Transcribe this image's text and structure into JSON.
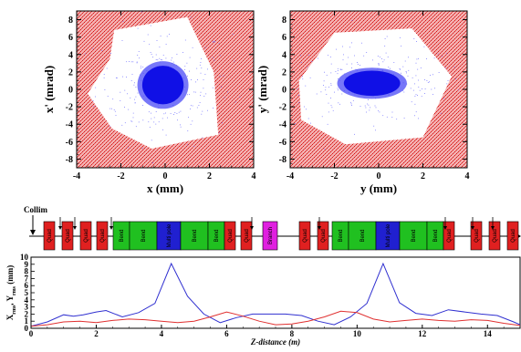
{
  "chart_data": [
    {
      "type": "scatter",
      "xlabel": "x (mm)",
      "ylabel": "x' (mrad)",
      "xlim": [
        -4,
        4
      ],
      "ylim": [
        -9,
        9
      ],
      "xticks": [
        -4,
        -2,
        0,
        2,
        4
      ],
      "yticks": [
        -8,
        -6,
        -4,
        -2,
        0,
        2,
        4,
        6,
        8
      ],
      "series": [
        {
          "color": "#e03030",
          "description_points": "halo fill outside aperture"
        },
        {
          "color": "#1010e0",
          "description_points": "core beam near origin"
        }
      ],
      "aperture_polygon": [
        [
          -2.3,
          6.8
        ],
        [
          1.0,
          8.3
        ],
        [
          2.2,
          2.0
        ],
        [
          2.4,
          -5.2
        ],
        [
          -0.6,
          -6.8
        ],
        [
          -2.4,
          -4.5
        ],
        [
          -3.5,
          -0.5
        ],
        [
          -2.5,
          3.5
        ]
      ],
      "core_ellipse": {
        "cx": -0.1,
        "cy": 0.5,
        "rx": 1.1,
        "ry": 2.6
      }
    },
    {
      "type": "scatter",
      "xlabel": "y (mm)",
      "ylabel": "y' (mrad)",
      "xlim": [
        -4,
        4
      ],
      "ylim": [
        -9,
        9
      ],
      "xticks": [
        -4,
        -2,
        0,
        2,
        4
      ],
      "yticks": [
        -8,
        -6,
        -4,
        -2,
        0,
        2,
        4,
        6,
        8
      ],
      "series": [
        {
          "color": "#e03030"
        },
        {
          "color": "#1010e0"
        }
      ],
      "aperture_polygon": [
        [
          -2.0,
          6.5
        ],
        [
          1.5,
          7.0
        ],
        [
          3.3,
          1.5
        ],
        [
          2.0,
          -5.5
        ],
        [
          -1.5,
          -6.3
        ],
        [
          -3.5,
          -3.5
        ],
        [
          -3.6,
          1.0
        ]
      ],
      "core_ellipse": {
        "cx": -0.3,
        "cy": 0.7,
        "rx": 1.5,
        "ry": 1.7
      }
    },
    {
      "type": "line",
      "xlabel": "Z-distance (m)",
      "ylabel": "Xₒₘₛ, Yₒₘₛ (mm)",
      "ylabel_main": "X",
      "ylabel_sub1": "rms",
      "ylabel_comma": ", Y",
      "ylabel_sub2": "rms",
      "ylabel_unit": " (mm)",
      "xlim": [
        0,
        15
      ],
      "ylim": [
        0,
        10
      ],
      "xticks": [
        0,
        2,
        4,
        6,
        8,
        10,
        12,
        14
      ],
      "yticks": [
        0,
        1,
        2,
        3,
        4,
        5,
        6,
        7,
        8,
        9,
        10
      ],
      "series": [
        {
          "color": "#3030d0",
          "x": [
            0,
            0.5,
            1.0,
            1.3,
            1.6,
            2.0,
            2.3,
            2.8,
            3.3,
            3.8,
            4.3,
            4.8,
            5.3,
            5.8,
            6.3,
            6.8,
            7.3,
            7.8,
            8.3,
            8.8,
            9.3,
            9.8,
            10.3,
            10.8,
            11.3,
            11.8,
            12.3,
            12.8,
            13.3,
            13.8,
            14.3,
            14.8,
            15.0
          ],
          "y": [
            0.3,
            0.9,
            1.9,
            1.7,
            1.9,
            2.3,
            2.5,
            1.6,
            2.2,
            3.5,
            9.1,
            4.5,
            2.0,
            0.8,
            1.5,
            2.0,
            2.0,
            2.0,
            1.8,
            1.0,
            0.5,
            1.6,
            3.5,
            9.1,
            3.6,
            2.1,
            1.8,
            2.6,
            2.3,
            2.0,
            1.8,
            0.9,
            0.5
          ]
        },
        {
          "color": "#e03030",
          "x": [
            0,
            0.5,
            1.0,
            1.5,
            2.0,
            2.5,
            3.0,
            3.5,
            4.0,
            4.5,
            5.0,
            5.5,
            6.0,
            6.5,
            7.0,
            7.5,
            8.0,
            8.5,
            9.0,
            9.5,
            10.0,
            10.5,
            11.0,
            11.5,
            12.0,
            12.5,
            13.0,
            13.5,
            14.0,
            14.5,
            15.0
          ],
          "y": [
            0.3,
            0.5,
            0.9,
            1.0,
            0.8,
            1.1,
            1.3,
            1.2,
            1.0,
            0.8,
            1.0,
            1.6,
            2.3,
            1.7,
            1.0,
            0.5,
            0.6,
            1.0,
            1.6,
            2.4,
            2.2,
            1.3,
            0.9,
            1.1,
            1.3,
            1.1,
            1.0,
            1.2,
            1.1,
            0.7,
            0.4
          ]
        }
      ]
    }
  ],
  "beamline": {
    "collim_label": "Collim",
    "elements": [
      {
        "label": "Quad",
        "color": "#e02020"
      },
      {
        "label": "Quad",
        "color": "#e02020"
      },
      {
        "label": "Quad",
        "color": "#e02020"
      },
      {
        "label": "Quad",
        "color": "#e02020"
      },
      {
        "label": "Bend",
        "color": "#20c020"
      },
      {
        "label": "Bend",
        "color": "#20c020"
      },
      {
        "label": "Multi pole",
        "color": "#2020d0"
      },
      {
        "label": "Bend",
        "color": "#20c020"
      },
      {
        "label": "Bend",
        "color": "#20c020"
      },
      {
        "label": "Quad",
        "color": "#e02020"
      },
      {
        "label": "Quad",
        "color": "#e02020"
      },
      {
        "label": "Branch",
        "color": "#e020e0"
      },
      {
        "label": "Quad",
        "color": "#e02020"
      },
      {
        "label": "Quad",
        "color": "#e02020"
      },
      {
        "label": "Bend",
        "color": "#20c020"
      },
      {
        "label": "Bend",
        "color": "#20c020"
      },
      {
        "label": "Multi pole",
        "color": "#2020d0"
      },
      {
        "label": "Bend",
        "color": "#20c020"
      },
      {
        "label": "Bend",
        "color": "#20c020"
      },
      {
        "label": "Quad",
        "color": "#e02020"
      },
      {
        "label": "Quad",
        "color": "#e02020"
      },
      {
        "label": "Quad",
        "color": "#e02020"
      },
      {
        "label": "Quad",
        "color": "#e02020"
      }
    ]
  }
}
